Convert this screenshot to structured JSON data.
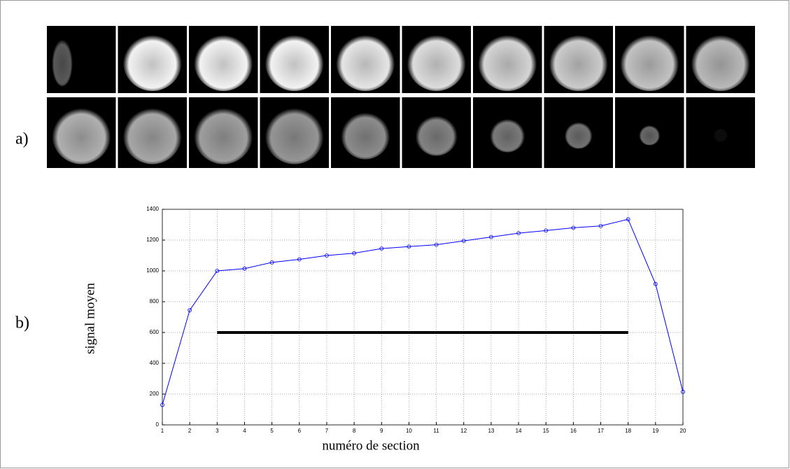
{
  "panel_labels": [
    "a)",
    "b)"
  ],
  "chart_data": {
    "type": "line",
    "x_label": "numéro de section",
    "y_label": "signal moyen",
    "x": [
      1,
      2,
      3,
      4,
      5,
      6,
      7,
      8,
      9,
      10,
      11,
      12,
      13,
      14,
      15,
      16,
      17,
      18,
      19,
      20
    ],
    "series": [
      {
        "color": "#0000ff",
        "values": [
          130,
          745,
          1000,
          1015,
          1055,
          1075,
          1100,
          1115,
          1145,
          1158,
          1170,
          1195,
          1220,
          1245,
          1262,
          1280,
          1292,
          1335,
          915,
          215
        ]
      }
    ],
    "range_bar": {
      "x": [
        3,
        18
      ],
      "y": 600,
      "color": "#000000"
    },
    "xlim": [
      1,
      20
    ],
    "xticks": [
      1,
      2,
      3,
      4,
      5,
      6,
      7,
      8,
      9,
      10,
      11,
      12,
      13,
      14,
      15,
      16,
      17,
      18,
      19,
      20
    ],
    "ylim": [
      0,
      1400
    ],
    "yticks": [
      0,
      200,
      400,
      600,
      800,
      1000,
      1200,
      1400
    ],
    "grid": true
  }
}
